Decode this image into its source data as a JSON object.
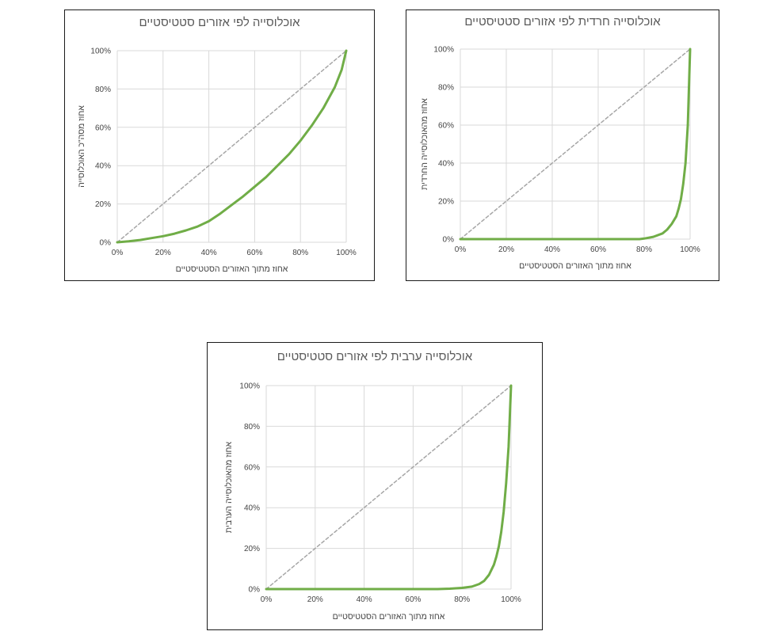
{
  "chart_data": [
    {
      "type": "line",
      "title": "אוכלוסייה לפי אזורים סטטיסטיים",
      "xlabel": "אחוז מתוך האזורים הסטטיסטיים",
      "ylabel": "אחוז מסה\"כ האוכלוסייה",
      "xlim": [
        0,
        100
      ],
      "ylim": [
        0,
        100
      ],
      "x_ticks": [
        "0%",
        "20%",
        "40%",
        "60%",
        "80%",
        "100%"
      ],
      "y_ticks": [
        "0%",
        "20%",
        "40%",
        "60%",
        "80%",
        "100%"
      ],
      "grid": true,
      "legend": "none",
      "series": [
        {
          "color": "#70ad47",
          "style": "solid",
          "x": [
            0,
            5,
            10,
            15,
            20,
            25,
            30,
            35,
            40,
            45,
            50,
            55,
            60,
            65,
            70,
            75,
            80,
            85,
            90,
            95,
            98,
            100
          ],
          "y": [
            0,
            0.5,
            1.2,
            2.2,
            3.2,
            4.5,
            6.2,
            8.2,
            11,
            15,
            19.5,
            24,
            29,
            34,
            40,
            46,
            53,
            61,
            70,
            81,
            90,
            100
          ]
        },
        {
          "color": "#a6a6a6",
          "style": "dashed",
          "x": [
            0,
            100
          ],
          "y": [
            0,
            100
          ]
        }
      ]
    },
    {
      "type": "line",
      "title": "אוכלוסייה חרדית לפי אזורים סטטיסטיים",
      "xlabel": "אחוז מתוך האזורים הסטטיסטיים",
      "ylabel": "אחוז מהאוכלוסייה החרדית",
      "xlim": [
        0,
        100
      ],
      "ylim": [
        0,
        100
      ],
      "x_ticks": [
        "0%",
        "20%",
        "40%",
        "60%",
        "80%",
        "100%"
      ],
      "y_ticks": [
        "0%",
        "20%",
        "40%",
        "60%",
        "80%",
        "100%"
      ],
      "grid": true,
      "legend": "none",
      "series": [
        {
          "color": "#70ad47",
          "style": "solid",
          "x": [
            0,
            10,
            20,
            30,
            40,
            50,
            60,
            70,
            78,
            80,
            84,
            88,
            90,
            92,
            94,
            95,
            96,
            97,
            98,
            99,
            100
          ],
          "y": [
            0,
            0,
            0,
            0,
            0,
            0,
            0,
            0,
            0,
            0.3,
            1.2,
            3,
            5,
            8,
            12,
            16,
            21,
            29,
            40,
            60,
            100
          ]
        },
        {
          "color": "#a6a6a6",
          "style": "dashed",
          "x": [
            0,
            100
          ],
          "y": [
            0,
            100
          ]
        }
      ]
    },
    {
      "type": "line",
      "title": "אוכלוסייה ערבית לפי אזורים סטטיסטיים",
      "xlabel": "אחוז מתוך האזורים הסטטיסטיים",
      "ylabel": "אחוז מהאוכלוסייה הערבית",
      "xlim": [
        0,
        100
      ],
      "ylim": [
        0,
        100
      ],
      "x_ticks": [
        "0%",
        "20%",
        "40%",
        "60%",
        "80%",
        "100%"
      ],
      "y_ticks": [
        "0%",
        "20%",
        "40%",
        "60%",
        "80%",
        "100%"
      ],
      "grid": true,
      "legend": "none",
      "series": [
        {
          "color": "#70ad47",
          "style": "solid",
          "x": [
            0,
            10,
            20,
            30,
            40,
            50,
            60,
            70,
            75,
            80,
            84,
            87,
            89,
            91,
            93,
            94,
            95,
            96,
            97,
            98,
            99,
            100
          ],
          "y": [
            0,
            0,
            0,
            0,
            0,
            0,
            0,
            0,
            0.2,
            0.6,
            1.2,
            2.5,
            4,
            7,
            12,
            16,
            21,
            28,
            38,
            52,
            70,
            100
          ]
        },
        {
          "color": "#a6a6a6",
          "style": "dashed",
          "x": [
            0,
            100
          ],
          "y": [
            0,
            100
          ]
        }
      ]
    }
  ]
}
